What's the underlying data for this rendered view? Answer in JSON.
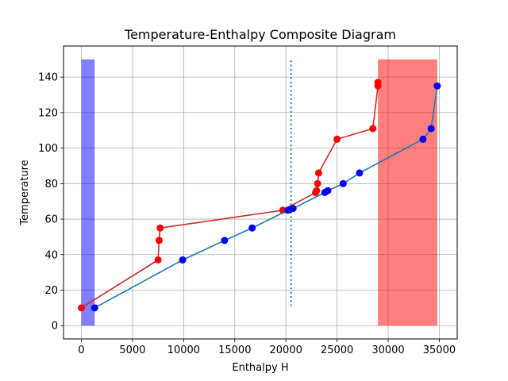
{
  "chart_data": {
    "type": "line",
    "title": "Temperature-Enthalpy Composite Diagram",
    "xlabel": "Enthalpy H",
    "ylabel": "Temperature",
    "xlim": [
      -1750,
      36750
    ],
    "ylim": [
      -7.5,
      157.5
    ],
    "xticks": [
      0,
      5000,
      10000,
      15000,
      20000,
      25000,
      30000,
      35000
    ],
    "xtick_labels": [
      "0",
      "5000",
      "10000",
      "15000",
      "20000",
      "25000",
      "30000",
      "35000"
    ],
    "yticks": [
      0,
      20,
      40,
      60,
      80,
      100,
      120,
      140
    ],
    "ytick_labels": [
      "0",
      "20",
      "40",
      "60",
      "80",
      "100",
      "120",
      "140"
    ],
    "grid": true,
    "shaded_regions": [
      {
        "x0": 0,
        "x1": 1300,
        "y0": 0,
        "y1": 150,
        "color": "#0000ff",
        "opacity": 0.5
      },
      {
        "x0": 29000,
        "x1": 34800,
        "y0": 0,
        "y1": 150,
        "color": "#ff0000",
        "opacity": 0.5
      }
    ],
    "vertical_line": {
      "x": 20500,
      "y0": 11,
      "y1": 150,
      "color": "#1f77b4",
      "style": "dotted"
    },
    "series": [
      {
        "color": "#d62728",
        "marker_color": "#ff0000",
        "x": [
          0,
          7500,
          7600,
          7700,
          19700,
          22900,
          23000,
          23100,
          23200,
          25000,
          28500,
          29000,
          29000
        ],
        "y": [
          10,
          37,
          48,
          55,
          65,
          75,
          76,
          80,
          86,
          105,
          111,
          135,
          137
        ]
      },
      {
        "color": "#1f77b4",
        "marker_color": "#0000ff",
        "x": [
          1300,
          9900,
          14000,
          16700,
          20200,
          20400,
          20700,
          23800,
          24100,
          25600,
          27200,
          33400,
          34200,
          34800
        ],
        "y": [
          10,
          37,
          48,
          55,
          65,
          65.5,
          66,
          75,
          76,
          80,
          86,
          105,
          111,
          135
        ]
      }
    ]
  }
}
